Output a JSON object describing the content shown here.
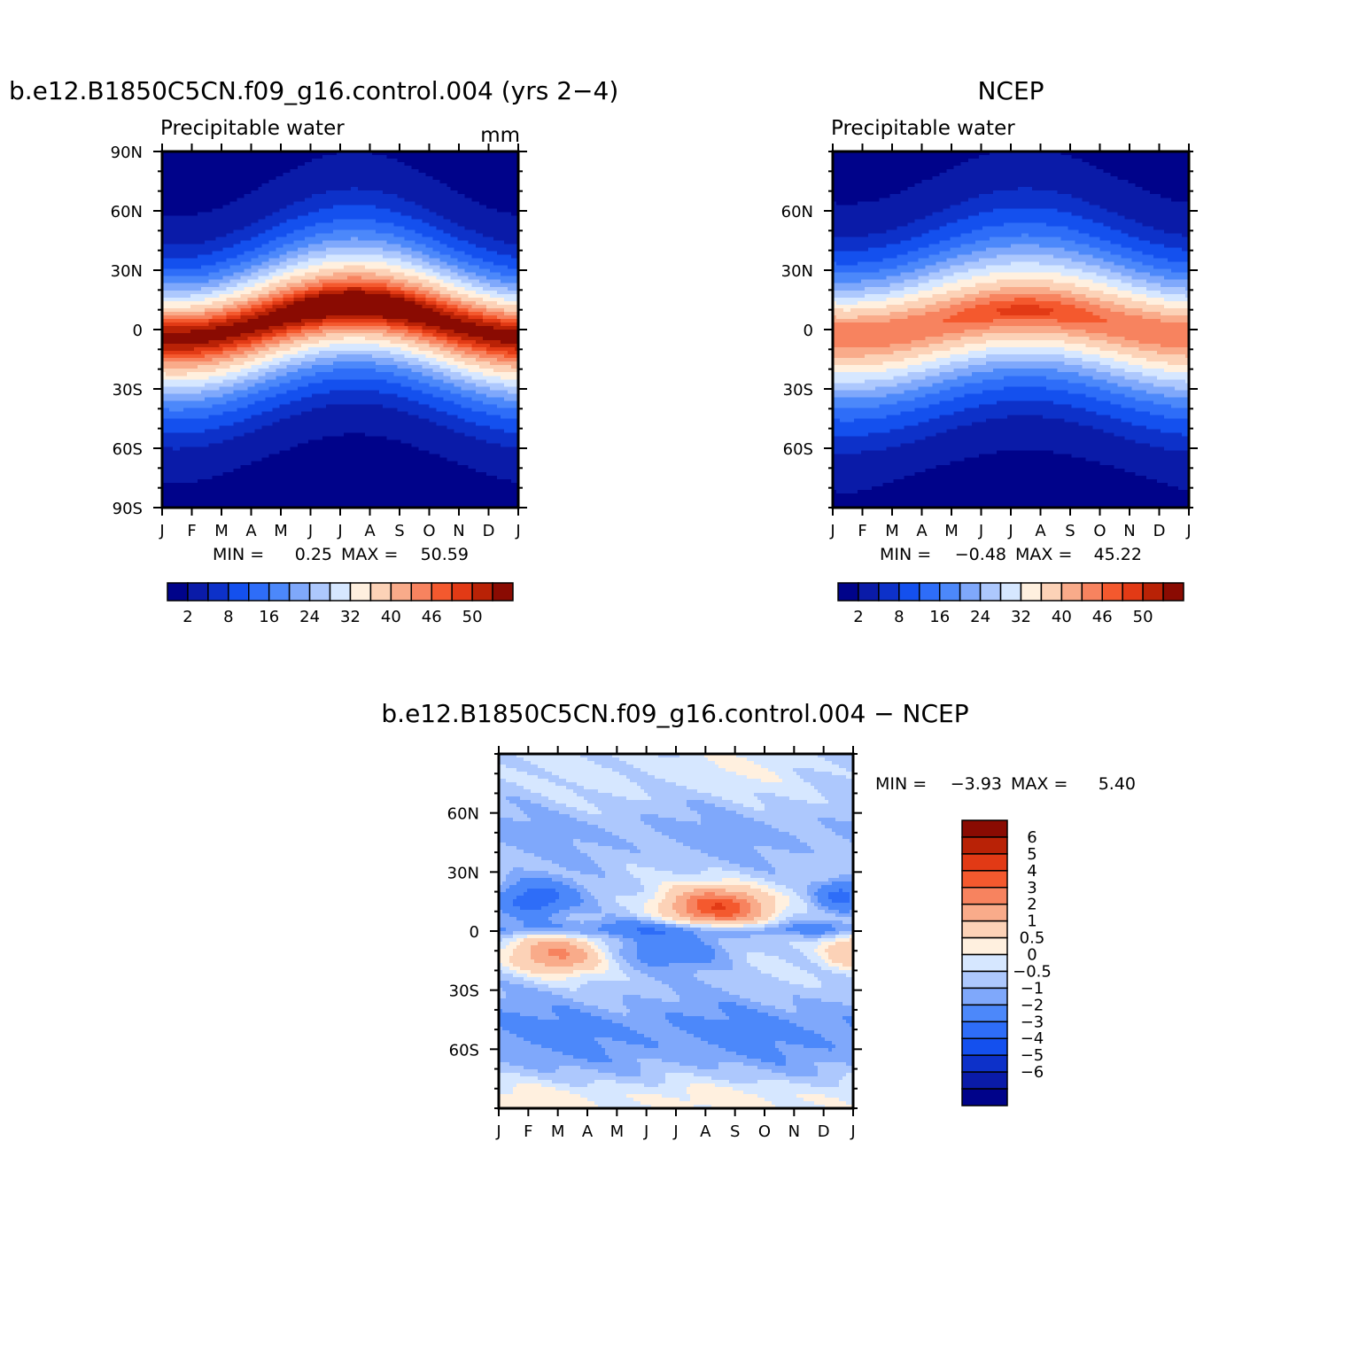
{
  "colormaps": {
    "absolute": [
      "#00038a",
      "#0a1ba8",
      "#0d31c9",
      "#1450ee",
      "#2e6df8",
      "#4c88fa",
      "#7fa8fb",
      "#adc8fd",
      "#d6e7ff",
      "#fff0df",
      "#fcd2b7",
      "#f9ab8a",
      "#f7835f",
      "#f4592e",
      "#e23a15",
      "#b92206",
      "#8a0b02"
    ],
    "difference": [
      "#00038a",
      "#0a1ba8",
      "#0d31c9",
      "#1450ee",
      "#2e6df8",
      "#4c88fa",
      "#7fa8fb",
      "#adc8fd",
      "#d6e7ff",
      "#fff0df",
      "#fcd2b7",
      "#f9ab8a",
      "#f7835f",
      "#f4592e",
      "#e23a15",
      "#b92206",
      "#8a0b02"
    ]
  },
  "chart_data": [
    {
      "type": "heatmap",
      "title": "b.e12.B1850C5CN.f09_g16.control.004 (yrs 2−4)",
      "subtitle_left": "Precipitable water",
      "subtitle_right": "mm",
      "x_ticks": [
        "J",
        "F",
        "M",
        "A",
        "M",
        "J",
        "J",
        "A",
        "S",
        "O",
        "N",
        "D",
        "J"
      ],
      "y_ticks": [
        "90N",
        "60N",
        "30N",
        "0",
        "30S",
        "60S",
        "90S"
      ],
      "y_tick_values": [
        90,
        60,
        30,
        0,
        -30,
        -60,
        -90
      ],
      "ylim": [
        -90,
        90
      ],
      "min_label": "MIN =",
      "min_value": "0.25",
      "max_label": "MAX =",
      "max_value": "50.59",
      "levels": [
        2,
        5,
        8,
        12,
        16,
        20,
        24,
        28,
        32,
        36,
        40,
        43,
        46,
        48,
        50,
        52
      ],
      "colorbar_labels": [
        "2",
        "8",
        "16",
        "24",
        "32",
        "40",
        "46",
        "50"
      ],
      "field": {
        "peak": 52.0,
        "itcz_lat": 4,
        "itcz_amp": 8,
        "width": 30
      }
    },
    {
      "type": "heatmap",
      "title": "NCEP",
      "subtitle_left": "Precipitable water",
      "subtitle_right": "",
      "x_ticks": [
        "J",
        "F",
        "M",
        "A",
        "M",
        "J",
        "J",
        "A",
        "S",
        "O",
        "N",
        "D",
        "J"
      ],
      "y_ticks": [
        "60N",
        "30N",
        "0",
        "30S",
        "60S"
      ],
      "y_tick_values": [
        60,
        30,
        0,
        -30,
        -60
      ],
      "ylim": [
        -90,
        90
      ],
      "min_label": "MIN =",
      "min_value": "−0.48",
      "max_label": "MAX =",
      "max_value": "45.22",
      "levels": [
        2,
        5,
        8,
        12,
        16,
        20,
        24,
        28,
        32,
        36,
        40,
        43,
        46,
        48,
        50,
        52
      ],
      "colorbar_labels": [
        "2",
        "8",
        "16",
        "24",
        "32",
        "40",
        "46",
        "50"
      ],
      "field": {
        "peak": 44.5,
        "itcz_lat": 3,
        "itcz_amp": 6,
        "width": 33
      }
    },
    {
      "type": "heatmap",
      "title": "b.e12.B1850C5CN.f09_g16.control.004 − NCEP",
      "x_ticks": [
        "J",
        "F",
        "M",
        "A",
        "M",
        "J",
        "J",
        "A",
        "S",
        "O",
        "N",
        "D",
        "J"
      ],
      "y_ticks": [
        "60N",
        "30N",
        "0",
        "30S",
        "60S"
      ],
      "y_tick_values": [
        60,
        30,
        0,
        -30,
        -60
      ],
      "ylim": [
        -90,
        90
      ],
      "min_label": "MIN =",
      "min_value": "−3.93",
      "max_label": "MAX =",
      "max_value": "5.40",
      "levels": [
        -6,
        -5,
        -4,
        -3,
        -2,
        -1,
        -0.5,
        0,
        0.5,
        1,
        2,
        3,
        4,
        5,
        6
      ],
      "colorbar_labels": [
        "6",
        "5",
        "4",
        "3",
        "2",
        "1",
        "0.5",
        "0",
        "−0.5",
        "−1",
        "−2",
        "−3",
        "−4",
        "−5",
        "−6"
      ]
    }
  ]
}
